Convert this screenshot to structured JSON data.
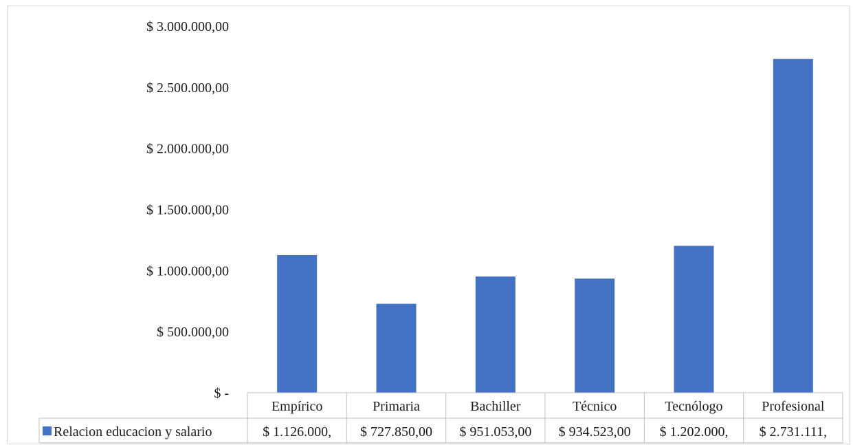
{
  "chart_data": {
    "type": "bar",
    "categories": [
      "Empírico",
      "Primaria",
      "Bachiller",
      "Técnico",
      "Tecnólogo",
      "Profesional"
    ],
    "series": [
      {
        "name": "Relacion educacion y salario",
        "values": [
          1126000,
          727850,
          951053,
          934523,
          1202000,
          2731111
        ],
        "table_labels": [
          "$ 1.126.000,",
          "$ 727.850,00",
          "$ 951.053,00",
          "$ 934.523,00",
          "$ 1.202.000,",
          "$ 2.731.111,"
        ],
        "color": "#4472C4"
      }
    ],
    "ylim": [
      0,
      3000000
    ],
    "yticks": [
      0,
      500000,
      1000000,
      1500000,
      2000000,
      2500000,
      3000000
    ],
    "ytick_labels": [
      "$ -",
      "$ 500.000,00",
      "$ 1.000.000,00",
      "$ 1.500.000,00",
      "$ 2.000.000,00",
      "$ 2.500.000,00",
      "$ 3.000.000,00"
    ],
    "title": "",
    "xlabel": "",
    "ylabel": "",
    "grid": false,
    "legend": "data-table"
  }
}
